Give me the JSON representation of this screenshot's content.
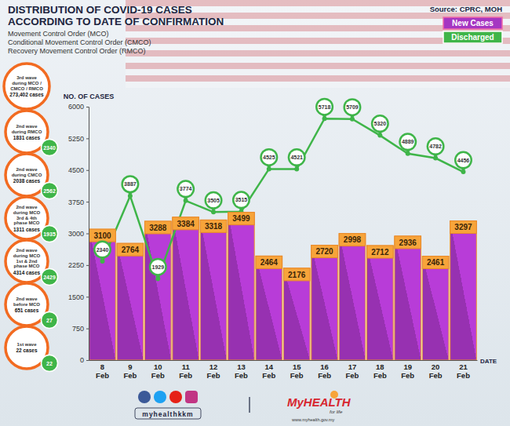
{
  "chart_data": {
    "type": "bar",
    "title": [
      "DISTRIBUTION OF COVID-19 CASES",
      "ACCORDING TO DATE OF CONFIRMATION"
    ],
    "subtitle": [
      "Movement Control Order (MCO)",
      "Conditional Movement Control Order (CMCO)",
      "Recovery Movement Control Order (RMCO)"
    ],
    "categories": [
      "8 Feb",
      "9 Feb",
      "10 Feb",
      "11 Feb",
      "12 Feb",
      "13 Feb",
      "14 Feb",
      "15 Feb",
      "16 Feb",
      "17 Feb",
      "18 Feb",
      "19 Feb",
      "20 Feb",
      "21 Feb"
    ],
    "series": [
      {
        "name": "New Cases",
        "type": "bar",
        "color": "#a536c2",
        "values": [
          3100,
          2764,
          3288,
          3384,
          3318,
          3499,
          2464,
          2176,
          2720,
          2998,
          2712,
          2936,
          2461,
          3297
        ]
      },
      {
        "name": "Discharged",
        "type": "line",
        "color": "#3fb549",
        "marker": "circle",
        "values": [
          2340,
          3887,
          1929,
          3774,
          3505,
          3515,
          4525,
          4521,
          5718,
          5709,
          5320,
          4889,
          4782,
          4456
        ]
      }
    ],
    "ylim": [
      0,
      6000
    ],
    "yticks": [
      0,
      750,
      1500,
      2250,
      3000,
      3750,
      4500,
      5250,
      6000
    ],
    "y_label": "NO. OF CASES",
    "x_label": "DATE",
    "grid": false,
    "legend": "top-right",
    "data_labels": true,
    "annotations": {
      "source": "Source: CPRC, MOH",
      "waves": [
        {
          "lines": [
            "3rd wave",
            "during MCO /",
            "CMCO / RMCO"
          ],
          "cases": 273402,
          "cases_label": "273,402 cases"
        },
        {
          "lines": [
            "2nd wave",
            "during RMCO"
          ],
          "cases": 1831,
          "cases_label": "1831 cases",
          "discharged": 2340
        },
        {
          "lines": [
            "2nd wave",
            "during CMCO"
          ],
          "cases": 2038,
          "cases_label": "2038 cases",
          "discharged": 2562
        },
        {
          "lines": [
            "2nd wave",
            "during MCO",
            "3rd & 4th",
            "phase MCO"
          ],
          "cases": 1311,
          "cases_label": "1311 cases",
          "discharged": 1935
        },
        {
          "lines": [
            "2nd wave",
            "during MCO",
            "1st & 2nd",
            "phase MCO"
          ],
          "cases": 4314,
          "cases_label": "4314 cases",
          "discharged": 2429
        },
        {
          "lines": [
            "2nd wave",
            "before MCO"
          ],
          "cases": 651,
          "cases_label": "651 cases",
          "discharged": 27
        },
        {
          "lines": [
            "1st wave"
          ],
          "cases": 22,
          "cases_label": "22 cases",
          "discharged": 22
        }
      ],
      "footer": {
        "social": "myhealthkkm",
        "brand": "MyHEALTH",
        "tagline": "for life",
        "url": "www.myhealth.gov.my"
      }
    }
  }
}
